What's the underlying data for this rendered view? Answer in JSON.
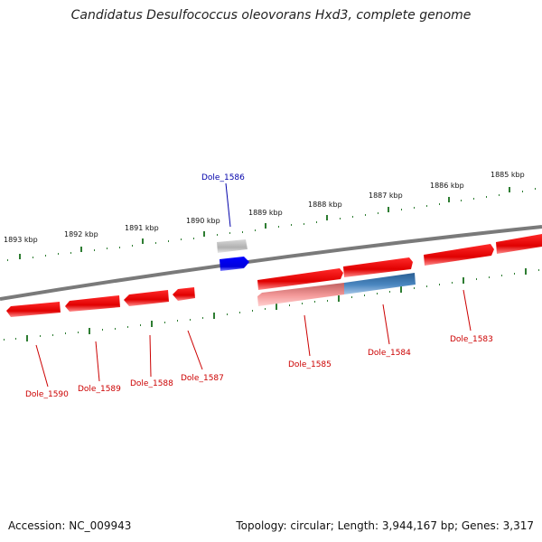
{
  "title": "Candidatus Desulfococcus oleovorans Hxd3, complete genome",
  "footer": {
    "accession": "Accession: NC_009943",
    "summary": "Topology: circular; Length: 3,944,167 bp; Genes: 3,317"
  },
  "colors": {
    "forward_gene": "#ff0000",
    "reverse_gene": "#ff0000",
    "highlight_forward": "#0000ee",
    "highlight_reverse": "#4a7fb5",
    "genome_line": "#808080",
    "ticks": "#2e7d32",
    "label": "#cc0000",
    "label_highlight": "#0000aa"
  },
  "scale_labels": [
    "1893 kbp",
    "1892 kbp",
    "1891 kbp",
    "1890 kbp",
    "1889 kbp",
    "1888 kbp",
    "1887 kbp",
    "1886 kbp",
    "1885 kbp"
  ],
  "gene_labels": {
    "dole_1586": "Dole_1586",
    "dole_1590": "Dole_1590",
    "dole_1589": "Dole_1589",
    "dole_1588": "Dole_1588",
    "dole_1587": "Dole_1587",
    "dole_1585": "Dole_1585",
    "dole_1584": "Dole_1584",
    "dole_1583": "Dole_1583"
  }
}
